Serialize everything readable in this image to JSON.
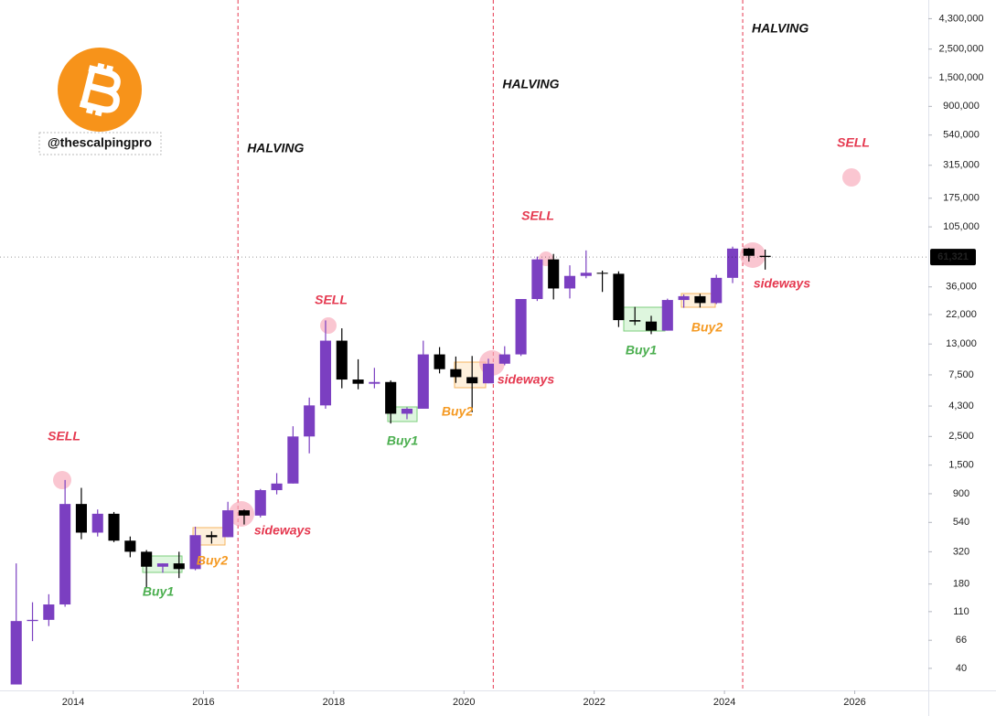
{
  "chart_data": {
    "type": "candlestick",
    "handle": "@thescalpingpro",
    "log_scale": true,
    "up_color": "#7b3fc1",
    "down_color": "#000000",
    "x": [
      2013.125,
      2013.375,
      2013.625,
      2013.875,
      2014.125,
      2014.375,
      2014.625,
      2014.875,
      2015.125,
      2015.375,
      2015.625,
      2015.875,
      2016.125,
      2016.375,
      2016.625,
      2016.875,
      2017.125,
      2017.375,
      2017.625,
      2017.875,
      2018.125,
      2018.375,
      2018.625,
      2018.875,
      2019.125,
      2019.375,
      2019.625,
      2019.875,
      2020.125,
      2020.375,
      2020.625,
      2020.875,
      2021.125,
      2021.375,
      2021.625,
      2021.875,
      2022.125,
      2022.375,
      2022.625,
      2022.875,
      2023.125,
      2023.375,
      2023.625,
      2023.875,
      2024.125,
      2024.375,
      2024.625
    ],
    "open": [
      30,
      93,
      95,
      125,
      750,
      450,
      630,
      390,
      320,
      245,
      260,
      235,
      430,
      415,
      670,
      610,
      960,
      1080,
      2500,
      4350,
      13800,
      6900,
      6400,
      6600,
      3750,
      4100,
      10800,
      8300,
      7200,
      6450,
      9150,
      10800,
      29000,
      58800,
      35000,
      43800,
      46300,
      45500,
      19900,
      19400,
      16500,
      28500,
      30500,
      27000,
      42300,
      71300,
      62700
    ],
    "high": [
      260,
      130,
      150,
      1150,
      1000,
      680,
      650,
      420,
      330,
      260,
      320,
      500,
      460,
      780,
      680,
      980,
      1300,
      3000,
      5000,
      19800,
      17200,
      9900,
      8500,
      6800,
      4200,
      13800,
      12300,
      10400,
      10500,
      10000,
      12500,
      29000,
      61800,
      64800,
      52900,
      69000,
      48100,
      47500,
      25200,
      21500,
      29200,
      31400,
      31800,
      44700,
      73800,
      72000,
      70000
    ],
    "low": [
      30,
      65,
      85,
      120,
      400,
      420,
      380,
      290,
      170,
      220,
      200,
      230,
      370,
      415,
      520,
      590,
      890,
      1080,
      1850,
      4100,
      5900,
      5800,
      5900,
      3150,
      3400,
      4100,
      7700,
      6500,
      3850,
      6450,
      8900,
      10500,
      28000,
      28800,
      29300,
      42000,
      32900,
      17600,
      18200,
      15500,
      16500,
      24800,
      24900,
      26500,
      38500,
      56500,
      49000
    ],
    "close": [
      93,
      95,
      125,
      750,
      450,
      630,
      390,
      320,
      245,
      260,
      235,
      430,
      415,
      670,
      610,
      960,
      1080,
      2500,
      4350,
      13800,
      6900,
      6400,
      6600,
      3750,
      4100,
      10800,
      8300,
      7200,
      6450,
      9150,
      10800,
      29000,
      58800,
      35000,
      43800,
      46300,
      45500,
      19900,
      19400,
      16500,
      28500,
      30500,
      27000,
      42300,
      71300,
      62700,
      61321
    ],
    "xlim": [
      2012.876,
      2027.13
    ],
    "xticks": [
      2014,
      2016,
      2018,
      2020,
      2022,
      2024,
      2026
    ],
    "ylim": [
      27,
      6000000
    ],
    "yticks": [
      {
        "value": 4300000,
        "label": "4,300,000"
      },
      {
        "value": 2500000,
        "label": "2,500,000"
      },
      {
        "value": 1500000,
        "label": "1,500,000"
      },
      {
        "value": 900000,
        "label": "900,000"
      },
      {
        "value": 540000,
        "label": "540,000"
      },
      {
        "value": 315000,
        "label": "315,000"
      },
      {
        "value": 175000,
        "label": "175,000"
      },
      {
        "value": 105000,
        "label": "105,000"
      },
      {
        "value": 36000,
        "label": "36,000"
      },
      {
        "value": 22000,
        "label": "22,000"
      },
      {
        "value": 13000,
        "label": "13,000"
      },
      {
        "value": 7500,
        "label": "7,500"
      },
      {
        "value": 4300,
        "label": "4,300"
      },
      {
        "value": 2500,
        "label": "2,500"
      },
      {
        "value": 1500,
        "label": "1,500"
      },
      900,
      540,
      320,
      180,
      110,
      66,
      40
    ],
    "price_label": {
      "value": 61321,
      "label": "61,321"
    },
    "events": [
      {
        "x": 2016.53,
        "label": "HALVING"
      },
      {
        "x": 2020.45,
        "label": "HALVING"
      },
      {
        "x": 2024.28,
        "label": "HALVING"
      }
    ],
    "annotations": [
      "SELL",
      "SELL",
      "SELL",
      "SELL",
      "sideways",
      "sideways",
      "sideways",
      "Buy1",
      "Buy1",
      "Buy1",
      "Buy2",
      "Buy2",
      "Buy2"
    ]
  }
}
